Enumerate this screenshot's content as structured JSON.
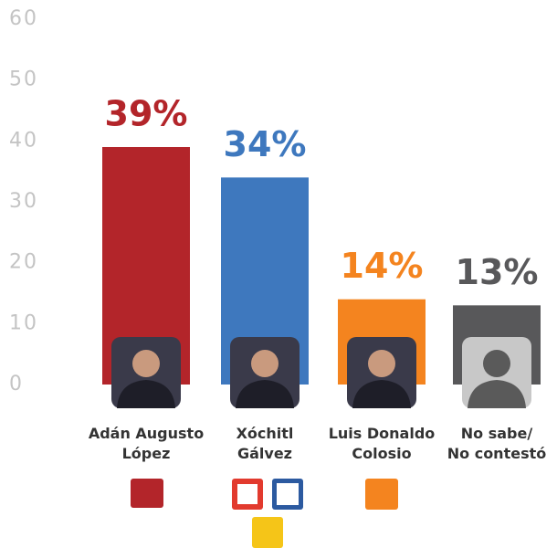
{
  "chart_data": {
    "type": "bar",
    "categories": [
      "Adán Augusto\nLópez",
      "Xóchitl\nGálvez",
      "Luis Donaldo\nColosio",
      "No sabe/\nNo contestó"
    ],
    "values": [
      39,
      34,
      14,
      13
    ],
    "value_labels": [
      "39%",
      "34%",
      "14%",
      "13%"
    ],
    "colors": [
      "#b3252a",
      "#3e78be",
      "#f4841f",
      "#58585a"
    ],
    "ylim": [
      0,
      60
    ],
    "yticks": [
      0,
      10,
      20,
      30,
      40,
      50,
      60
    ],
    "grid": false
  }
}
